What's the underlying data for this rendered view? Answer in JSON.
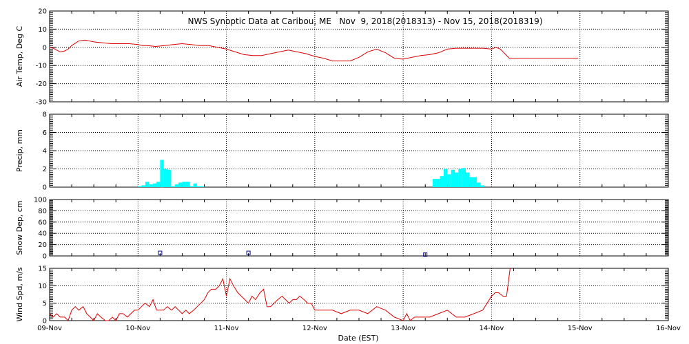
{
  "chart_data": {
    "type": "line",
    "title": "NWS Synoptic Data at Caribou, ME   Nov  9, 2018(2018313) - Nov 15, 2018(2018319)",
    "xlabel": "Date (EST)",
    "x_ticks": [
      "09-Nov",
      "10-Nov",
      "11-Nov",
      "12-Nov",
      "13-Nov",
      "14-Nov",
      "15-Nov",
      "16-Nov"
    ],
    "xlim": [
      0,
      7
    ],
    "x_units_note": "days since 09-Nov 00:00",
    "grid": true,
    "colors": {
      "line": "#dd0000",
      "bar": "#00ffff",
      "marker": "#000080",
      "grid": "#000000"
    },
    "panels": [
      {
        "id": "temp",
        "ylabel": "Air Temp, Deg C",
        "type": "line",
        "ylim": [
          -30,
          20
        ],
        "yticks": [
          "-30",
          "-20",
          "-10",
          "0",
          "10",
          "20"
        ],
        "series": [
          {
            "x": [
              0,
              0.04,
              0.08,
              0.12,
              0.17,
              0.21,
              0.25,
              0.33,
              0.4,
              0.5,
              0.6,
              0.7,
              0.8,
              0.9,
              1.0,
              1.05,
              1.1,
              1.2,
              1.3,
              1.4,
              1.5,
              1.6,
              1.7,
              1.8,
              1.9,
              2.0,
              2.1,
              2.2,
              2.3,
              2.4,
              2.5,
              2.6,
              2.7,
              2.8,
              2.9,
              3.0,
              3.1,
              3.2,
              3.3,
              3.4,
              3.5,
              3.6,
              3.7,
              3.8,
              3.9,
              4.0,
              4.1,
              4.2,
              4.3,
              4.4,
              4.5,
              4.6,
              4.7,
              4.8,
              4.9,
              5.0,
              5.05,
              5.1,
              5.2,
              5.4,
              5.6,
              5.8,
              5.98
            ],
            "y": [
              0,
              -0.5,
              -1.5,
              -2.5,
              -2,
              -1,
              1,
              3.5,
              4,
              3,
              2.5,
              2,
              2,
              2,
              1.5,
              1,
              1,
              0.5,
              1,
              1.5,
              2,
              1.5,
              1,
              1,
              0,
              -1,
              -2.5,
              -4,
              -4.5,
              -4.5,
              -3.5,
              -2.5,
              -1.5,
              -2.5,
              -3.5,
              -5,
              -6,
              -7.5,
              -7.5,
              -7.5,
              -5.5,
              -2.5,
              -1,
              -3,
              -6,
              -6.5,
              -5.5,
              -4.5,
              -4,
              -3,
              -1,
              -0.5,
              -0.5,
              -0.5,
              -0.5,
              -1,
              0,
              -1,
              -6,
              -6,
              -6,
              -6,
              -6
            ]
          }
        ]
      },
      {
        "id": "precip",
        "ylabel": "Precip, mm",
        "type": "bar",
        "ylim": [
          0,
          8
        ],
        "yticks": [
          "0",
          "2",
          "4",
          "6",
          "8"
        ],
        "bar_width": 0.042,
        "bars": [
          {
            "x": 1.0,
            "y": 0.1
          },
          {
            "x": 1.042,
            "y": 0.2
          },
          {
            "x": 1.083,
            "y": 0.6
          },
          {
            "x": 1.125,
            "y": 0.3
          },
          {
            "x": 1.167,
            "y": 0.4
          },
          {
            "x": 1.208,
            "y": 0.6
          },
          {
            "x": 1.25,
            "y": 3.0
          },
          {
            "x": 1.292,
            "y": 2.0
          },
          {
            "x": 1.333,
            "y": 1.9
          },
          {
            "x": 1.375,
            "y": 0.1
          },
          {
            "x": 1.417,
            "y": 0.3
          },
          {
            "x": 1.458,
            "y": 0.5
          },
          {
            "x": 1.5,
            "y": 0.6
          },
          {
            "x": 1.542,
            "y": 0.6
          },
          {
            "x": 1.583,
            "y": 0.1
          },
          {
            "x": 1.625,
            "y": 0.4
          },
          {
            "x": 1.667,
            "y": 0.1
          },
          {
            "x": 1.708,
            "y": 0.1
          },
          {
            "x": 4.333,
            "y": 0.9
          },
          {
            "x": 4.375,
            "y": 0.9
          },
          {
            "x": 4.417,
            "y": 1.2
          },
          {
            "x": 4.458,
            "y": 2.0
          },
          {
            "x": 4.5,
            "y": 1.4
          },
          {
            "x": 4.542,
            "y": 1.9
          },
          {
            "x": 4.583,
            "y": 1.6
          },
          {
            "x": 4.625,
            "y": 2.0
          },
          {
            "x": 4.667,
            "y": 2.1
          },
          {
            "x": 4.708,
            "y": 1.6
          },
          {
            "x": 4.75,
            "y": 1.1
          },
          {
            "x": 4.792,
            "y": 1.1
          },
          {
            "x": 4.833,
            "y": 0.5
          },
          {
            "x": 4.875,
            "y": 0.2
          }
        ]
      },
      {
        "id": "snow",
        "ylabel": "Snow Dep, cm",
        "type": "scatter",
        "ylim": [
          0,
          100
        ],
        "yticks": [
          "0",
          "20",
          "40",
          "60",
          "80",
          "100"
        ],
        "points": [
          {
            "x": 1.25,
            "y": 3
          },
          {
            "x": 2.25,
            "y": 3
          },
          {
            "x": 4.25,
            "y": 0
          }
        ]
      },
      {
        "id": "wind",
        "ylabel": "Wind Spd, m/s",
        "type": "line",
        "ylim": [
          0,
          15
        ],
        "yticks": [
          "0",
          "5",
          "10",
          "15"
        ],
        "series": [
          {
            "x": [
              0,
              0.04,
              0.08,
              0.12,
              0.17,
              0.21,
              0.25,
              0.29,
              0.33,
              0.38,
              0.42,
              0.46,
              0.5,
              0.54,
              0.58,
              0.63,
              0.67,
              0.71,
              0.75,
              0.79,
              0.83,
              0.88,
              0.92,
              0.96,
              1.0,
              1.04,
              1.08,
              1.13,
              1.17,
              1.21,
              1.25,
              1.29,
              1.33,
              1.38,
              1.42,
              1.46,
              1.5,
              1.54,
              1.58,
              1.63,
              1.67,
              1.71,
              1.75,
              1.79,
              1.83,
              1.88,
              1.92,
              1.96,
              2.0,
              2.04,
              2.08,
              2.13,
              2.17,
              2.21,
              2.25,
              2.29,
              2.33,
              2.38,
              2.42,
              2.46,
              2.5,
              2.54,
              2.58,
              2.63,
              2.67,
              2.71,
              2.75,
              2.79,
              2.83,
              2.88,
              2.92,
              2.96,
              3.0,
              3.1,
              3.2,
              3.3,
              3.4,
              3.5,
              3.6,
              3.7,
              3.8,
              3.9,
              4.0,
              4.04,
              4.08,
              4.13,
              4.17,
              4.21,
              4.25,
              4.3,
              4.4,
              4.5,
              4.6,
              4.7,
              4.8,
              4.9,
              5.0,
              5.04,
              5.08,
              5.13,
              5.17,
              5.21
            ],
            "y": [
              2,
              1,
              2,
              1,
              1,
              0,
              3,
              4,
              3,
              4,
              2,
              1,
              0,
              2,
              1,
              0,
              0,
              1,
              0,
              2,
              2,
              1,
              2,
              3,
              3,
              4,
              5,
              4,
              6,
              3,
              3,
              3,
              4,
              3,
              4,
              3,
              2,
              3,
              2,
              3,
              4,
              5,
              6,
              8,
              9,
              9,
              10,
              12,
              7,
              12,
              10,
              8,
              7,
              6,
              5,
              7,
              6,
              8,
              9,
              4,
              4,
              5,
              6,
              7,
              6,
              5,
              6,
              6,
              7,
              6,
              5,
              5,
              3,
              3,
              3,
              2,
              3,
              3,
              2,
              4,
              3,
              1,
              0,
              2,
              0,
              1,
              1,
              1,
              1,
              1,
              2,
              3,
              1,
              1,
              2,
              3,
              7,
              8,
              8,
              7,
              7,
              15
            ]
          }
        ]
      }
    ]
  }
}
